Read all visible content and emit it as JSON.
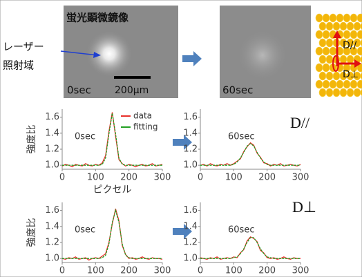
{
  "images": [
    {
      "title": "蛍光顕微鏡像",
      "time": "0sec",
      "scale": "200μm"
    },
    {
      "time": "60sec"
    }
  ],
  "laser_label": [
    "レーザー",
    "照射域"
  ],
  "diagram_labels": [
    "D//",
    "D⊥"
  ],
  "row_labels": [
    "D//",
    "D⊥"
  ],
  "chart_data": [
    {
      "type": "line",
      "annotation": "0sec",
      "ylabel": "強度比",
      "xlabel": "ピクセル",
      "legend": "upper right",
      "x": [
        0,
        10,
        20,
        30,
        40,
        50,
        60,
        70,
        80,
        90,
        100,
        110,
        120,
        130,
        140,
        150,
        160,
        170,
        180,
        190,
        200,
        210,
        220,
        230,
        240,
        250,
        260,
        270,
        280,
        290,
        300
      ],
      "series": [
        {
          "name": "data",
          "color": "#e8302a",
          "values": [
            0.99,
            1.01,
            1.0,
            0.98,
            1.01,
            1.0,
            0.99,
            1.02,
            1.0,
            0.99,
            1.01,
            1.0,
            1.03,
            1.12,
            1.42,
            1.66,
            1.36,
            1.07,
            1.02,
            0.99,
            1.01,
            1.0,
            0.98,
            1.0,
            1.01,
            0.99,
            1.0,
            1.02,
            0.99,
            1.0,
            1.01
          ]
        },
        {
          "name": "fitting",
          "color": "#22a022",
          "values": [
            1,
            1,
            1,
            1,
            1,
            1,
            1,
            1,
            1,
            1,
            1,
            1,
            1.01,
            1.09,
            1.39,
            1.65,
            1.39,
            1.09,
            1.01,
            1,
            1,
            1,
            1,
            1,
            1,
            1,
            1,
            1,
            1,
            1,
            1
          ]
        }
      ],
      "xlim": [
        0,
        300
      ],
      "xticks": [
        0,
        100,
        200,
        300
      ],
      "ylim": [
        0.95,
        1.7
      ],
      "yticks": [
        {
          "value": 1,
          "label": "1.0"
        },
        {
          "value": 1.2,
          "label": "1.2"
        },
        {
          "value": 1.4,
          "label": "1.4"
        },
        {
          "value": 1.6,
          "label": "1.6"
        }
      ]
    },
    {
      "type": "line",
      "annotation": "60sec",
      "x": [
        0,
        10,
        20,
        30,
        40,
        50,
        60,
        70,
        80,
        90,
        100,
        110,
        120,
        130,
        140,
        150,
        160,
        170,
        180,
        190,
        200,
        210,
        220,
        230,
        240,
        250,
        260,
        270,
        280,
        290,
        300
      ],
      "series": [
        {
          "color": "#e8302a",
          "values": [
            1.0,
            1.01,
            0.99,
            1.02,
            1.0,
            0.99,
            1.01,
            1.0,
            1.02,
            1.0,
            1.02,
            1.05,
            1.08,
            1.17,
            1.23,
            1.28,
            1.25,
            1.15,
            1.1,
            1.03,
            1.02,
            0.99,
            1.01,
            1.0,
            1.02,
            0.99,
            1.0,
            1.01,
            1.0,
            0.99,
            1.01
          ]
        },
        {
          "color": "#22a022",
          "values": [
            1,
            1,
            1,
            1,
            1,
            1,
            1,
            1,
            1,
            1,
            1.01,
            1.04,
            1.09,
            1.16,
            1.24,
            1.27,
            1.24,
            1.16,
            1.09,
            1.04,
            1.01,
            1,
            1,
            1,
            1,
            1,
            1,
            1,
            1,
            1,
            1
          ]
        }
      ],
      "xlim": [
        0,
        300
      ],
      "xticks": [
        0,
        100,
        200,
        300
      ],
      "ylim": [
        0.95,
        1.7
      ],
      "yticks": [
        {
          "value": 1,
          "label": "1.0"
        },
        {
          "value": 1.2,
          "label": "1.2"
        },
        {
          "value": 1.4,
          "label": "1.4"
        },
        {
          "value": 1.6,
          "label": "1.6"
        }
      ]
    },
    {
      "type": "line",
      "annotation": "0sec",
      "ylabel": "強度比",
      "x": [
        0,
        10,
        20,
        30,
        40,
        50,
        60,
        70,
        80,
        90,
        100,
        110,
        120,
        130,
        140,
        150,
        160,
        170,
        180,
        190,
        200,
        210,
        220,
        230,
        240,
        250,
        260,
        270,
        280,
        290,
        300
      ],
      "series": [
        {
          "color": "#e8302a",
          "values": [
            1.0,
            0.99,
            1.01,
            1.0,
            1.02,
            0.99,
            1.0,
            1.01,
            0.98,
            1.0,
            1.01,
            1.0,
            1.03,
            1.06,
            1.2,
            1.43,
            1.62,
            1.47,
            1.16,
            1.05,
            1.0,
            1.01,
            0.99,
            1.0,
            1.02,
            1.0,
            0.99,
            1.01,
            1.0,
            1.0,
            0.99
          ]
        },
        {
          "color": "#22a022",
          "values": [
            1,
            1,
            1,
            1,
            1,
            1,
            1,
            1,
            1,
            1,
            1,
            1,
            1.01,
            1.04,
            1.18,
            1.45,
            1.6,
            1.45,
            1.18,
            1.04,
            1.01,
            1,
            1,
            1,
            1,
            1,
            1,
            1,
            1,
            1,
            1
          ]
        }
      ],
      "xlim": [
        0,
        300
      ],
      "xticks": [
        0,
        100,
        200,
        300
      ],
      "ylim": [
        0.95,
        1.7
      ],
      "yticks": [
        {
          "value": 1,
          "label": "1.0"
        },
        {
          "value": 1.2,
          "label": "1.2"
        },
        {
          "value": 1.4,
          "label": "1.4"
        },
        {
          "value": 1.6,
          "label": "1.6"
        }
      ]
    },
    {
      "type": "line",
      "annotation": "60sec",
      "x": [
        0,
        10,
        20,
        30,
        40,
        50,
        60,
        70,
        80,
        90,
        100,
        110,
        120,
        130,
        140,
        150,
        160,
        170,
        180,
        190,
        200,
        210,
        220,
        230,
        240,
        250,
        260,
        270,
        280,
        290,
        300
      ],
      "series": [
        {
          "color": "#e8302a",
          "values": [
            1.01,
            1.0,
            0.99,
            1.01,
            1.0,
            1.02,
            0.99,
            1.0,
            1.01,
            1.0,
            1.02,
            1.01,
            1.07,
            1.11,
            1.22,
            1.27,
            1.25,
            1.21,
            1.1,
            1.07,
            1.01,
            1.0,
            1.01,
            0.99,
            1.0,
            1.02,
            1.0,
            0.99,
            1.01,
            1.0,
            1.0
          ]
        },
        {
          "color": "#22a022",
          "values": [
            1,
            1,
            1,
            1,
            1,
            1,
            1,
            1,
            1,
            1,
            1.01,
            1.02,
            1.06,
            1.12,
            1.2,
            1.26,
            1.26,
            1.2,
            1.12,
            1.06,
            1.02,
            1.01,
            1,
            1,
            1,
            1,
            1,
            1,
            1,
            1,
            1
          ]
        }
      ],
      "xlim": [
        0,
        300
      ],
      "xticks": [
        0,
        100,
        200,
        300
      ],
      "ylim": [
        0.95,
        1.7
      ],
      "yticks": [
        {
          "value": 1,
          "label": "1.0"
        },
        {
          "value": 1.2,
          "label": "1.2"
        },
        {
          "value": 1.4,
          "label": "1.4"
        },
        {
          "value": 1.6,
          "label": "1.6"
        }
      ]
    }
  ]
}
